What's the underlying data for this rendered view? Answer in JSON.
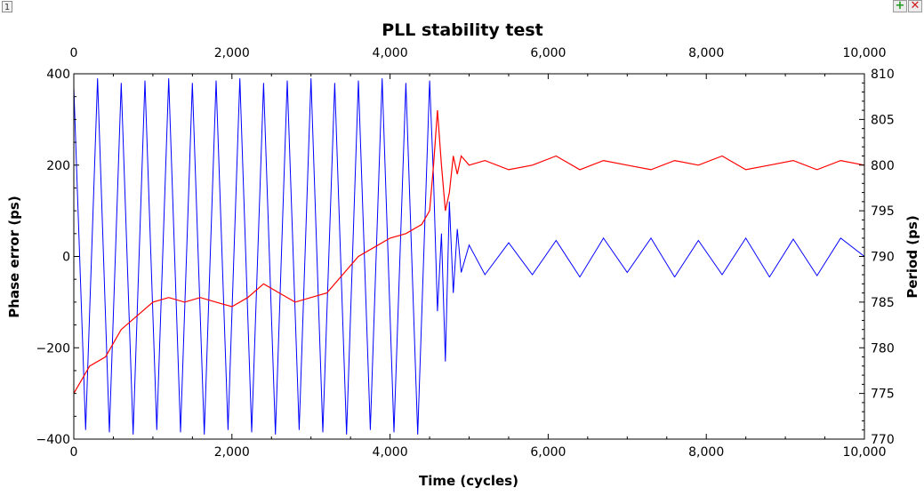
{
  "window": {
    "tag": "1",
    "add_icon": "plus-icon",
    "close_icon": "close-icon",
    "add_glyph": "+",
    "close_glyph": "✕"
  },
  "chart_data": {
    "type": "line",
    "title": "PLL stability test",
    "xlabel": "Time (cycles)",
    "ylabel_left": "Phase error (ps)",
    "ylabel_right": "Period (ps)",
    "xlim": [
      0,
      10000
    ],
    "ylim_left": [
      -400,
      400
    ],
    "ylim_right": [
      770,
      810
    ],
    "x_ticks": [
      0,
      2000,
      4000,
      6000,
      8000,
      10000
    ],
    "x_tick_labels": [
      "0",
      "2,000",
      "4,000",
      "6,000",
      "8,000",
      "10,000"
    ],
    "y_left_ticks": [
      -400,
      -200,
      0,
      200,
      400
    ],
    "y_left_tick_labels": [
      "−400",
      "−200",
      "0",
      "200",
      "400"
    ],
    "y_right_ticks": [
      770,
      775,
      780,
      785,
      790,
      795,
      800,
      805,
      810
    ],
    "y_right_tick_labels": [
      "770",
      "775",
      "780",
      "785",
      "790",
      "795",
      "800",
      "805",
      "810"
    ],
    "grid": false,
    "legend": "none",
    "series": [
      {
        "axis": "left",
        "color": "#0000ff",
        "x": [
          0,
          150,
          300,
          450,
          600,
          750,
          900,
          1050,
          1200,
          1350,
          1500,
          1650,
          1800,
          1950,
          2100,
          2250,
          2400,
          2550,
          2700,
          2850,
          3000,
          3150,
          3300,
          3450,
          3600,
          3750,
          3900,
          4050,
          4200,
          4350,
          4500,
          4550,
          4600,
          4650,
          4700,
          4750,
          4800,
          4850,
          4900,
          5000,
          5200,
          5500,
          5800,
          6100,
          6400,
          6700,
          7000,
          7300,
          7600,
          7900,
          8200,
          8500,
          8800,
          9100,
          9400,
          9700,
          10000
        ],
        "y": [
          370,
          -380,
          390,
          -385,
          380,
          -390,
          385,
          -380,
          390,
          -385,
          380,
          -390,
          385,
          -380,
          390,
          -385,
          380,
          -390,
          385,
          -380,
          390,
          -385,
          380,
          -390,
          385,
          -380,
          390,
          -385,
          380,
          -390,
          385,
          170,
          -120,
          50,
          -230,
          120,
          -80,
          60,
          -35,
          25,
          -40,
          30,
          -40,
          35,
          -45,
          40,
          -35,
          40,
          -45,
          35,
          -40,
          40,
          -45,
          38,
          -42,
          40,
          0
        ]
      },
      {
        "axis": "right",
        "color": "#ff0000",
        "x": [
          0,
          200,
          400,
          600,
          800,
          1000,
          1200,
          1400,
          1600,
          1800,
          2000,
          2200,
          2400,
          2600,
          2800,
          3000,
          3200,
          3400,
          3600,
          3800,
          4000,
          4200,
          4400,
          4500,
          4550,
          4600,
          4650,
          4700,
          4750,
          4800,
          4850,
          4900,
          5000,
          5200,
          5500,
          5800,
          6100,
          6400,
          6700,
          7000,
          7300,
          7600,
          7900,
          8200,
          8500,
          8800,
          9100,
          9400,
          9700,
          10000
        ],
        "y": [
          775,
          778,
          779,
          782,
          783.5,
          785,
          785.5,
          785,
          785.5,
          785,
          784.5,
          785.5,
          787,
          786,
          785,
          785.5,
          786,
          788,
          790,
          791,
          792,
          792.5,
          793.5,
          795,
          800,
          806,
          800,
          795,
          797,
          801,
          799,
          801,
          800,
          800.5,
          799.5,
          800,
          801,
          799.5,
          800.5,
          800,
          799.5,
          800.5,
          800,
          801,
          799.5,
          800,
          800.5,
          799.5,
          800.5,
          800
        ]
      }
    ]
  }
}
